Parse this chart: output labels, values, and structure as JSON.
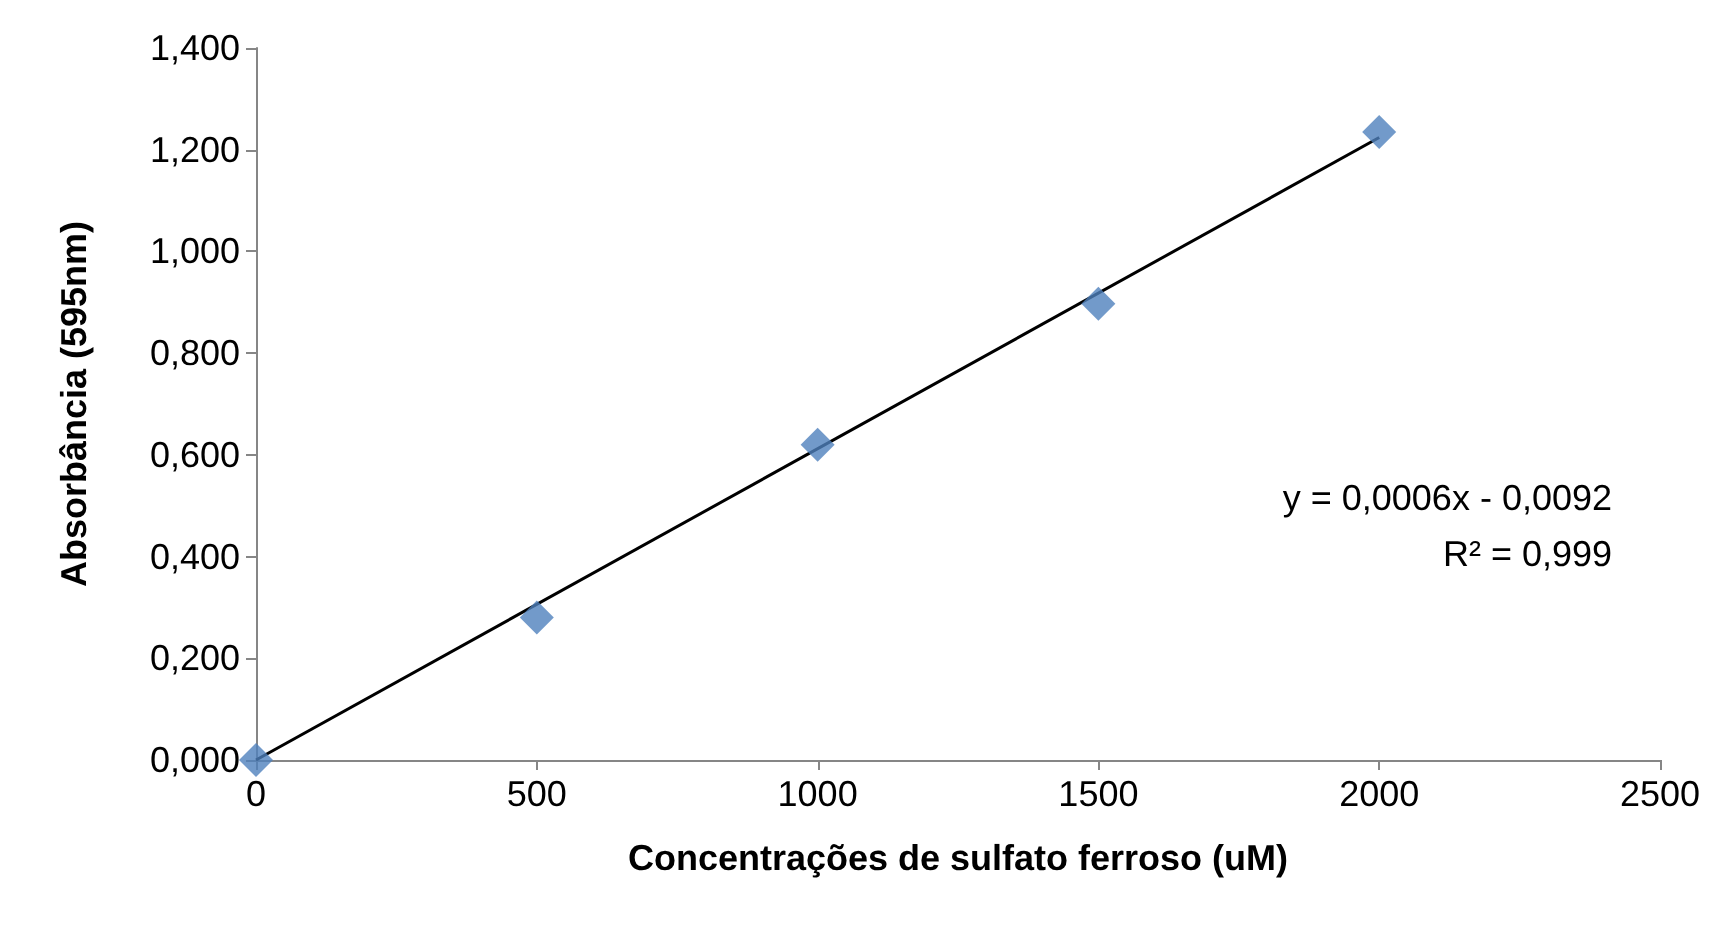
{
  "chart_data": {
    "type": "scatter",
    "xlabel": "Concentrações de sulfato ferroso (uM)",
    "ylabel": "Absorbância (595nm)",
    "xlim": [
      0,
      2500
    ],
    "xticks": [
      0,
      500,
      1000,
      1500,
      2000,
      2500
    ],
    "ylim": [
      0,
      1.4
    ],
    "yticks": [
      {
        "value": 0,
        "label": "0,000"
      },
      {
        "value": 0.2,
        "label": "0,200"
      },
      {
        "value": 0.4,
        "label": "0,400"
      },
      {
        "value": 0.6,
        "label": "0,600"
      },
      {
        "value": 0.8,
        "label": "0,800"
      },
      {
        "value": 1.0,
        "label": "1,000"
      },
      {
        "value": 1.2,
        "label": "1,200"
      },
      {
        "value": 1.4,
        "label": "1,400"
      }
    ],
    "grid": false,
    "marker": "diamond",
    "series": [
      {
        "color": "#4f81bd",
        "x": [
          0,
          500,
          1000,
          1500,
          2000
        ],
        "values": [
          0,
          0.28,
          0.62,
          0.897,
          1.235
        ]
      },
      {
        "type": "line",
        "color": "#000000",
        "x": [
          0,
          2000
        ],
        "values": [
          0,
          1.224
        ],
        "marker": "none",
        "line_style": "solid"
      }
    ],
    "annotations": [
      "y = 0,0006x - 0,0092",
      "R² = 0,999"
    ]
  }
}
